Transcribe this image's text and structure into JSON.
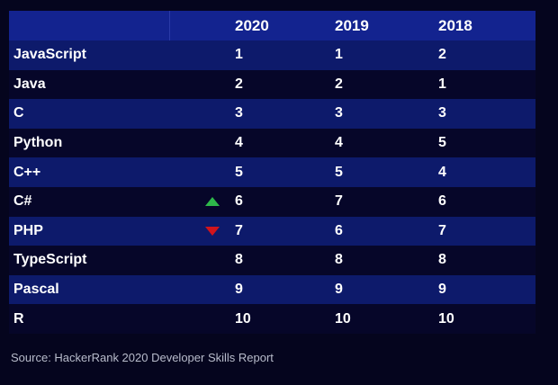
{
  "header": {
    "col_2020": "2020",
    "col_2019": "2019",
    "col_2018": "2018"
  },
  "rows": [
    {
      "name": "JavaScript",
      "r2020": "1",
      "r2019": "1",
      "r2018": "2",
      "trend": ""
    },
    {
      "name": "Java",
      "r2020": "2",
      "r2019": "2",
      "r2018": "1",
      "trend": ""
    },
    {
      "name": "C",
      "r2020": "3",
      "r2019": "3",
      "r2018": "3",
      "trend": ""
    },
    {
      "name": "Python",
      "r2020": "4",
      "r2019": "4",
      "r2018": "5",
      "trend": ""
    },
    {
      "name": "C++",
      "r2020": "5",
      "r2019": "5",
      "r2018": "4",
      "trend": ""
    },
    {
      "name": "C#",
      "r2020": "6",
      "r2019": "7",
      "r2018": "6",
      "trend": "up"
    },
    {
      "name": "PHP",
      "r2020": "7",
      "r2019": "6",
      "r2018": "7",
      "trend": "down"
    },
    {
      "name": "TypeScript",
      "r2020": "8",
      "r2019": "8",
      "r2018": "8",
      "trend": ""
    },
    {
      "name": "Pascal",
      "r2020": "9",
      "r2019": "9",
      "r2018": "9",
      "trend": ""
    },
    {
      "name": "R",
      "r2020": "10",
      "r2019": "10",
      "r2018": "10",
      "trend": ""
    }
  ],
  "source": "Source: HackerRank 2020 Developer Skills Report",
  "colors": {
    "header": "#13238f",
    "band_a": "#0d1a6b",
    "band_b": "#060629",
    "up": "#2eb84a",
    "down": "#d1141c",
    "source": "#b8bccb"
  },
  "chart_data": {
    "type": "table",
    "columns": [
      "",
      "2020",
      "2019",
      "2018"
    ],
    "rows": [
      [
        "JavaScript",
        1,
        1,
        2
      ],
      [
        "Java",
        2,
        2,
        1
      ],
      [
        "C",
        3,
        3,
        3
      ],
      [
        "Python",
        4,
        4,
        5
      ],
      [
        "C++",
        5,
        5,
        4
      ],
      [
        "C#",
        6,
        7,
        6
      ],
      [
        "PHP",
        7,
        6,
        7
      ],
      [
        "TypeScript",
        8,
        8,
        8
      ],
      [
        "Pascal",
        9,
        9,
        9
      ],
      [
        "R",
        10,
        10,
        10
      ]
    ],
    "trend_markers": {
      "C#": "up",
      "PHP": "down"
    }
  }
}
